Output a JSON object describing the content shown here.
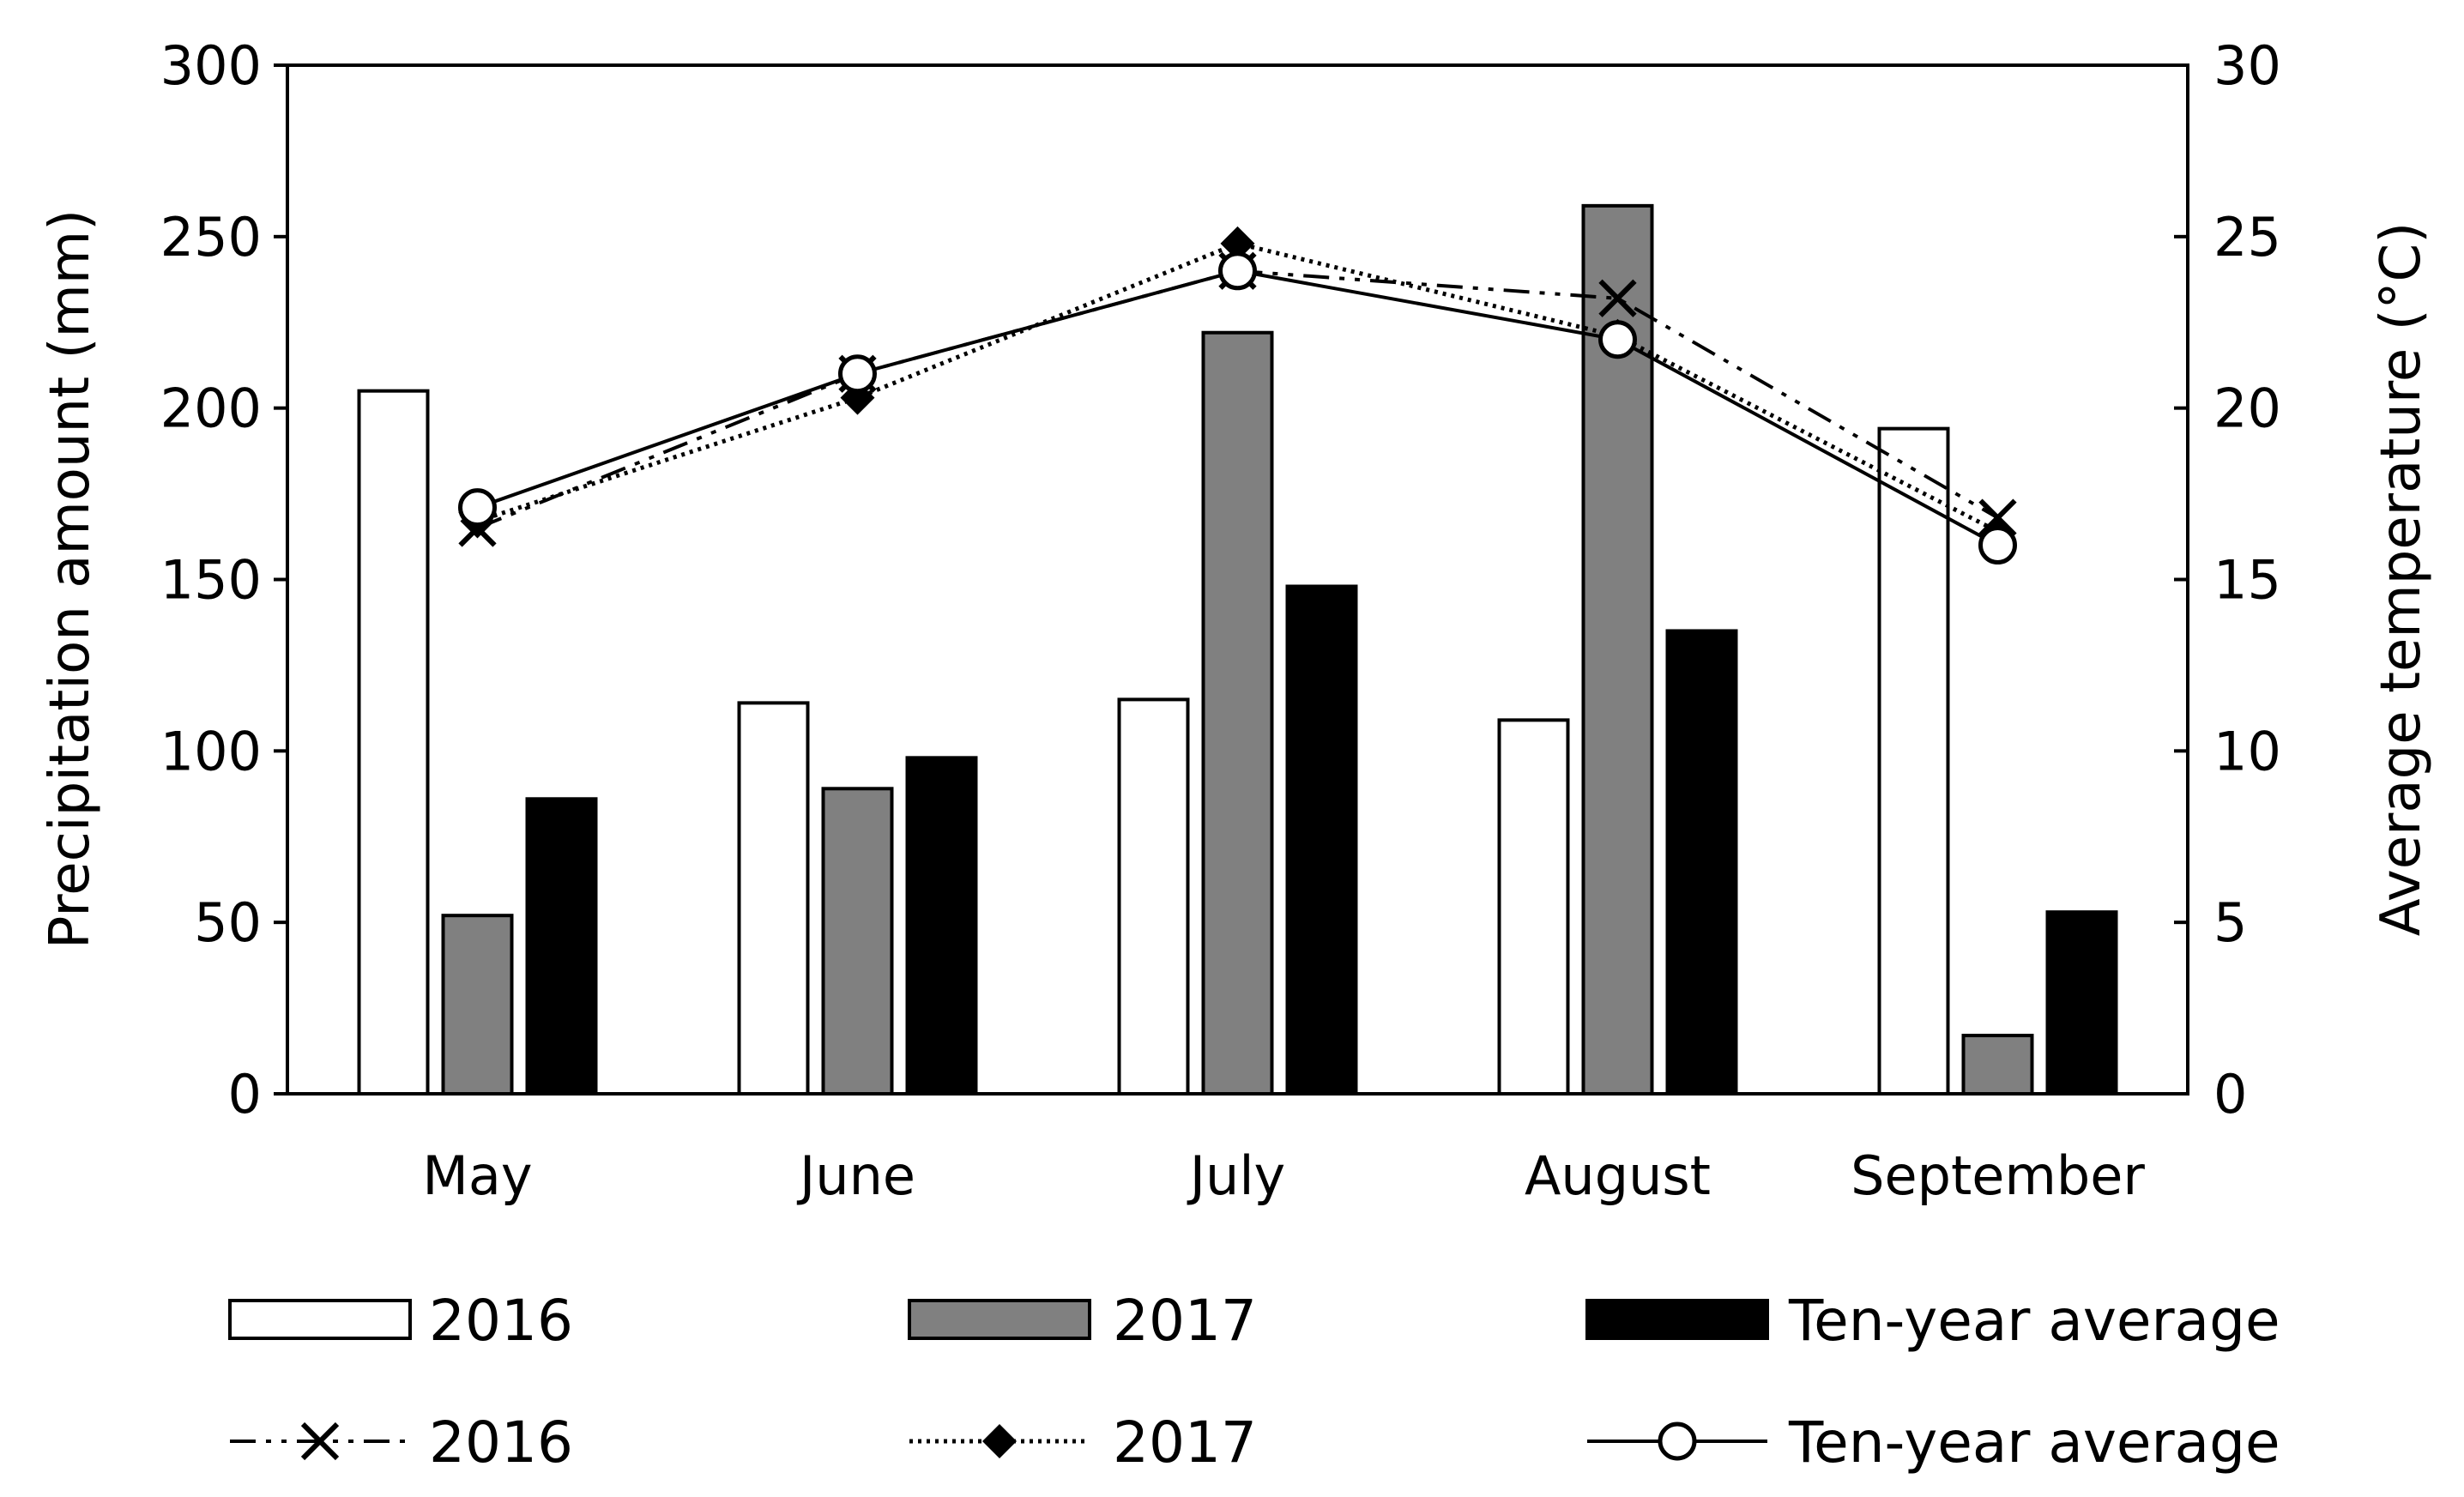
{
  "chart_data": {
    "type": "bar",
    "categories": [
      "May",
      "June",
      "July",
      "August",
      "September"
    ],
    "bar_series": [
      {
        "name": "2016",
        "values": [
          205,
          114,
          115,
          109,
          194
        ],
        "color": "#ffffff"
      },
      {
        "name": "2017",
        "values": [
          52,
          89,
          222,
          259,
          17
        ],
        "color": "#808080"
      },
      {
        "name": "Ten-year average",
        "values": [
          86,
          98,
          148,
          135,
          53
        ],
        "color": "#000000"
      }
    ],
    "line_series": [
      {
        "name": "2016",
        "values": [
          16.5,
          21.0,
          24.0,
          23.2,
          16.8
        ],
        "marker": "x",
        "dash": "dash-dot-dot"
      },
      {
        "name": "2017",
        "values": [
          16.7,
          20.3,
          24.8,
          22.1,
          16.4
        ],
        "marker": "diamond",
        "dash": "dotted"
      },
      {
        "name": "Ten-year average",
        "values": [
          17.1,
          21.0,
          24.0,
          22.0,
          16.0
        ],
        "marker": "circle",
        "dash": "solid"
      }
    ],
    "ylabel": "Precipitation amount (mm)",
    "ylim": [
      0,
      300
    ],
    "yticks": [
      "0",
      "50",
      "100",
      "150",
      "200",
      "250",
      "300"
    ],
    "y2label": "Average temperature (°C)",
    "y2lim": [
      0,
      30
    ],
    "y2ticks": [
      "0",
      "5",
      "10",
      "15",
      "20",
      "25",
      "30"
    ],
    "legend_position": "bottom"
  }
}
